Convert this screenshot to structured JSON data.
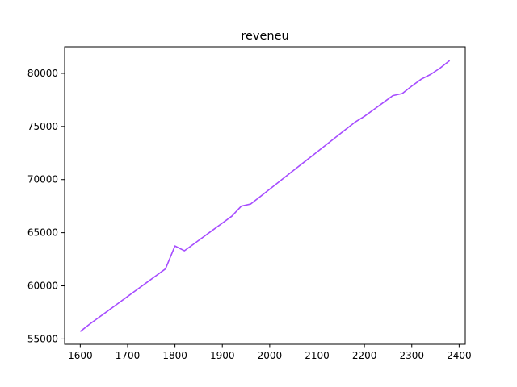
{
  "chart_data": {
    "type": "line",
    "title": "reveneu",
    "xlabel": "",
    "ylabel": "",
    "xlim": [
      1567,
      2413
    ],
    "ylim": [
      54500,
      82500
    ],
    "xticks": [
      1600,
      1700,
      1800,
      1900,
      2000,
      2100,
      2200,
      2300,
      2400
    ],
    "yticks": [
      55000,
      60000,
      65000,
      70000,
      75000,
      80000
    ],
    "grid": false,
    "legend": "none",
    "series": [
      {
        "color": "#a64dff",
        "x": [
          1600,
          1620,
          1640,
          1660,
          1680,
          1700,
          1720,
          1740,
          1760,
          1780,
          1800,
          1820,
          1840,
          1860,
          1880,
          1900,
          1920,
          1940,
          1960,
          1980,
          2000,
          2020,
          2040,
          2060,
          2080,
          2100,
          2120,
          2140,
          2160,
          2180,
          2200,
          2220,
          2240,
          2260,
          2280,
          2300,
          2320,
          2340,
          2360,
          2380
        ],
        "y": [
          55700,
          56400,
          57050,
          57700,
          58350,
          59000,
          59650,
          60300,
          60950,
          61600,
          63750,
          63300,
          63950,
          64600,
          65250,
          65900,
          66550,
          67500,
          67700,
          68400,
          69100,
          69800,
          70500,
          71200,
          71900,
          72600,
          73300,
          74000,
          74700,
          75400,
          75950,
          76600,
          77250,
          77900,
          78100,
          78800,
          79450,
          79900,
          80500,
          81200
        ]
      }
    ]
  }
}
